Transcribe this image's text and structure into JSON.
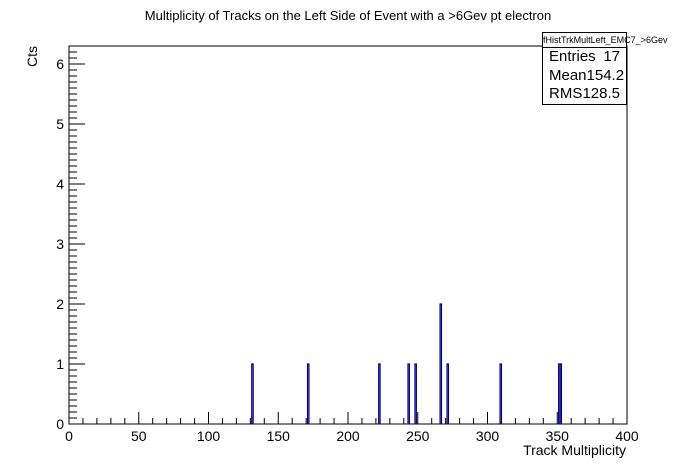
{
  "chart_data": {
    "type": "bar",
    "title": "Multiplicity of Tracks on the Left Side of Event with a >6Gev pt electron",
    "xlabel": "Track Multiplicity",
    "ylabel": "Cts",
    "xlim": [
      0,
      400
    ],
    "ylim": [
      0,
      6.3
    ],
    "x_ticks": [
      0,
      50,
      100,
      150,
      200,
      250,
      300,
      350,
      400
    ],
    "y_ticks": [
      0,
      1,
      2,
      3,
      4,
      5,
      6
    ],
    "bin_width": 1,
    "bins": [
      {
        "x": 131,
        "value": 1
      },
      {
        "x": 171,
        "value": 1
      },
      {
        "x": 222,
        "value": 1
      },
      {
        "x": 243,
        "value": 1
      },
      {
        "x": 248,
        "value": 1
      },
      {
        "x": 266,
        "value": 2
      },
      {
        "x": 271,
        "value": 1
      },
      {
        "x": 309,
        "value": 1
      },
      {
        "x": 351,
        "value": 1
      },
      {
        "x": 352,
        "value": 1
      }
    ],
    "grid": false,
    "line_color": "#000080",
    "stats_box": {
      "name": "fHistTrkMultLeft_EMC7_>6Gev",
      "entries_label": "Entries",
      "entries": "17",
      "mean_label": "Mean",
      "mean": "154.2",
      "rms_label": "RMS",
      "rms": "128.5",
      "placement": "top-right"
    }
  }
}
